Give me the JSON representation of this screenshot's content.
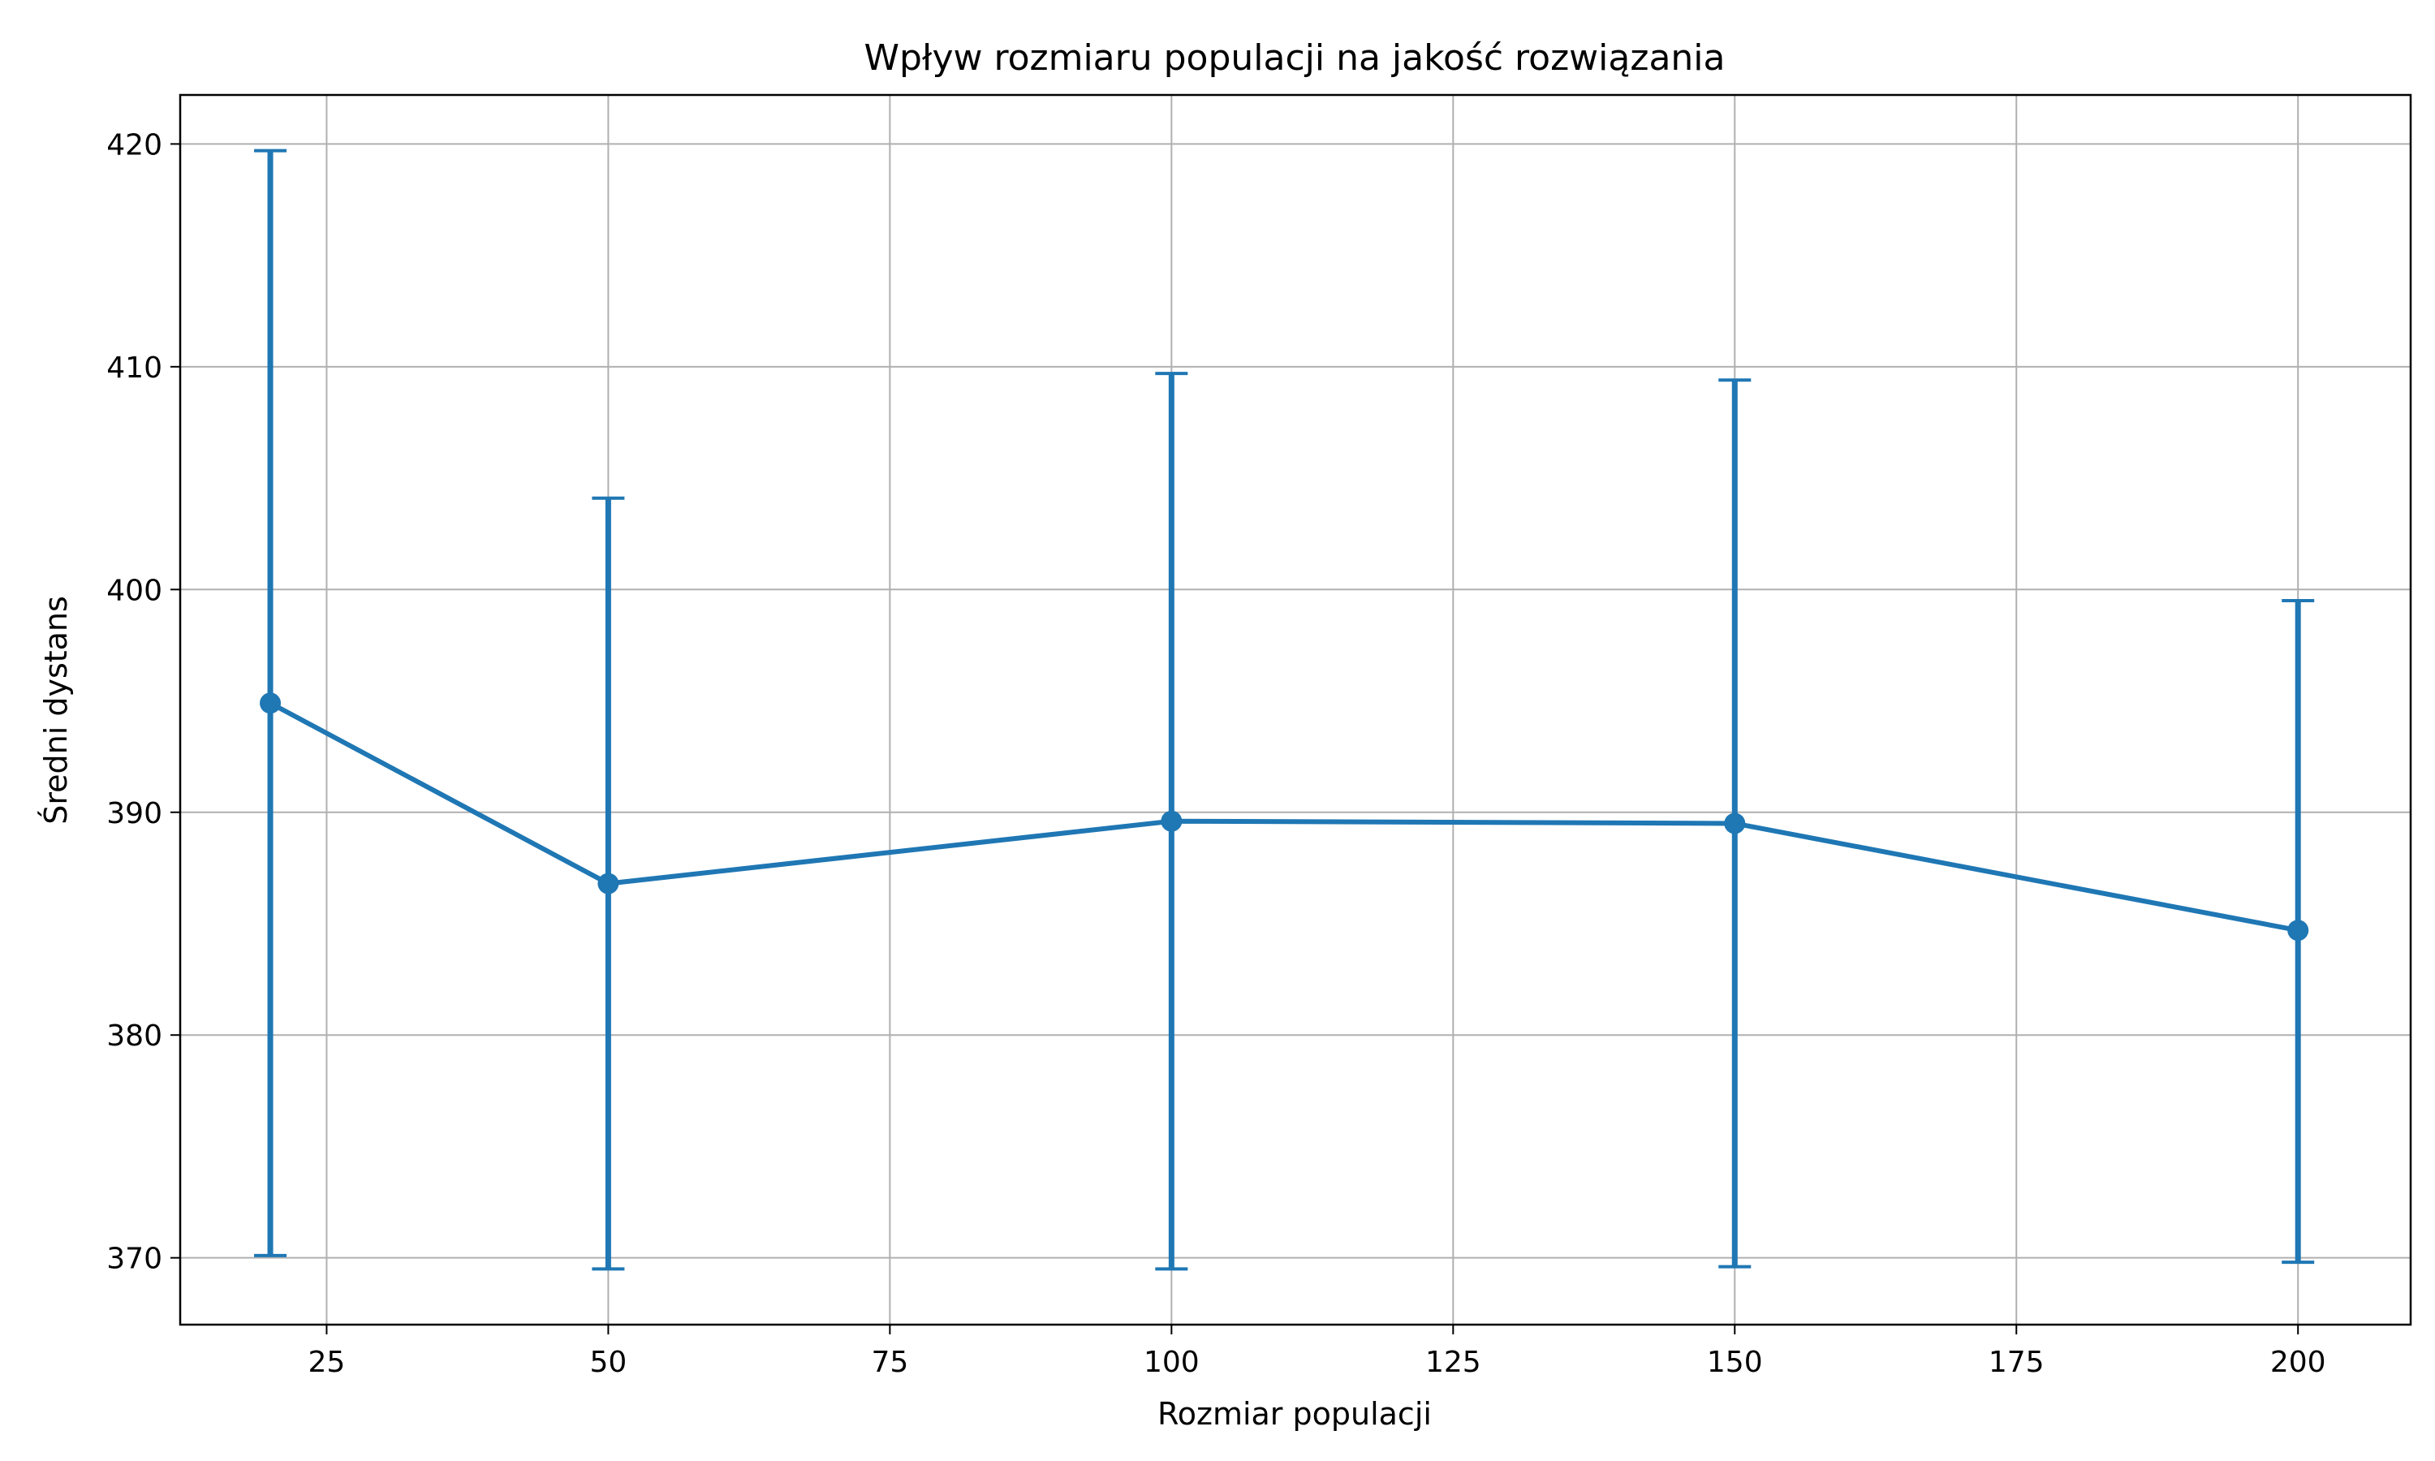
{
  "chart_data": {
    "type": "line",
    "title": "Wpływ rozmiaru populacji na jakość rozwiązania",
    "xlabel": "Rozmiar populacji",
    "ylabel": "Średni dystans",
    "xlim": [
      12,
      210
    ],
    "ylim": [
      367,
      422.2
    ],
    "xticks": [
      25,
      50,
      75,
      100,
      125,
      150,
      175,
      200
    ],
    "yticks": [
      370,
      380,
      390,
      400,
      410,
      420
    ],
    "grid": true,
    "color": "#1f77b4",
    "series": [
      {
        "x": [
          20,
          50,
          100,
          150,
          200
        ],
        "y": [
          394.9,
          386.8,
          389.6,
          389.5,
          384.7
        ],
        "err_low": [
          370.1,
          369.5,
          369.5,
          369.6,
          369.8
        ],
        "err_high": [
          419.7,
          404.1,
          409.7,
          409.4,
          399.5
        ]
      }
    ]
  }
}
